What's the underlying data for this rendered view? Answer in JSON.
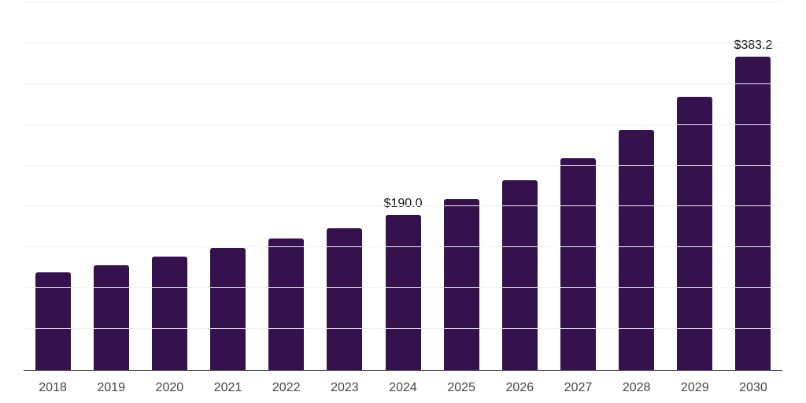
{
  "chart_data": {
    "type": "bar",
    "title": "",
    "xlabel": "",
    "ylabel": "",
    "categories": [
      "2018",
      "2019",
      "2020",
      "2021",
      "2022",
      "2023",
      "2024",
      "2025",
      "2026",
      "2027",
      "2028",
      "2029",
      "2030"
    ],
    "values": [
      119.5,
      128.6,
      138.6,
      149.4,
      160.7,
      173.2,
      190.0,
      209.5,
      232.5,
      259.5,
      294.0,
      334.5,
      383.2
    ],
    "data_labels": [
      "",
      "",
      "",
      "",
      "",
      "",
      "$190.0",
      "",
      "",
      "",
      "",
      "",
      "$383.2"
    ],
    "ylim": [
      0,
      450
    ],
    "gridline_step": 50,
    "grid": true,
    "legend": false,
    "y_axis_labels_visible": false,
    "colors": {
      "bar": "#35114d",
      "axis_line": "#262626",
      "gridline": "#f0f0f0",
      "tick_label": "#444444",
      "value_label": "#111111",
      "background": "#ffffff"
    }
  }
}
